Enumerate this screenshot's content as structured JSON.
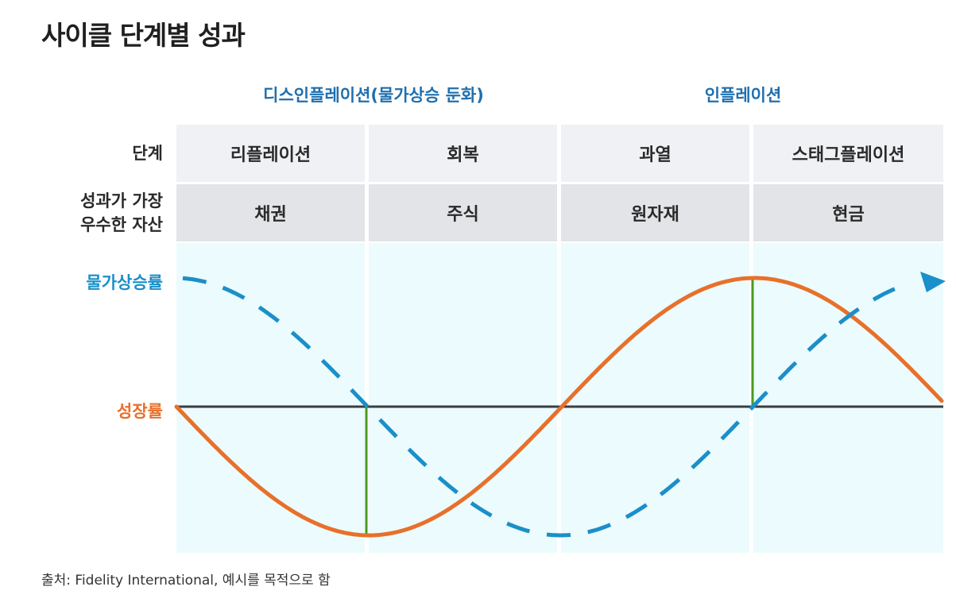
{
  "title": "사이클 단계별 성과",
  "phases": [
    "디스인플레이션(물가상승 둔화)",
    "인플레이션"
  ],
  "row_labels": {
    "stage": "단계",
    "asset_line1": "성과가 가장",
    "asset_line2": "우수한 자산"
  },
  "stages": [
    "리플레이션",
    "회복",
    "과열",
    "스태그플레이션"
  ],
  "assets": [
    "채권",
    "주식",
    "원자재",
    "현금"
  ],
  "series": {
    "inflation": {
      "label": "물가상승률",
      "color": "#1a8fc9"
    },
    "growth": {
      "label": "성장률",
      "color": "#e8702a"
    }
  },
  "markers": {
    "color": "#4a9a1a"
  },
  "baseline_color": "#3a3d40",
  "source": "출처: Fidelity International, 예시를 목적으로 함"
}
